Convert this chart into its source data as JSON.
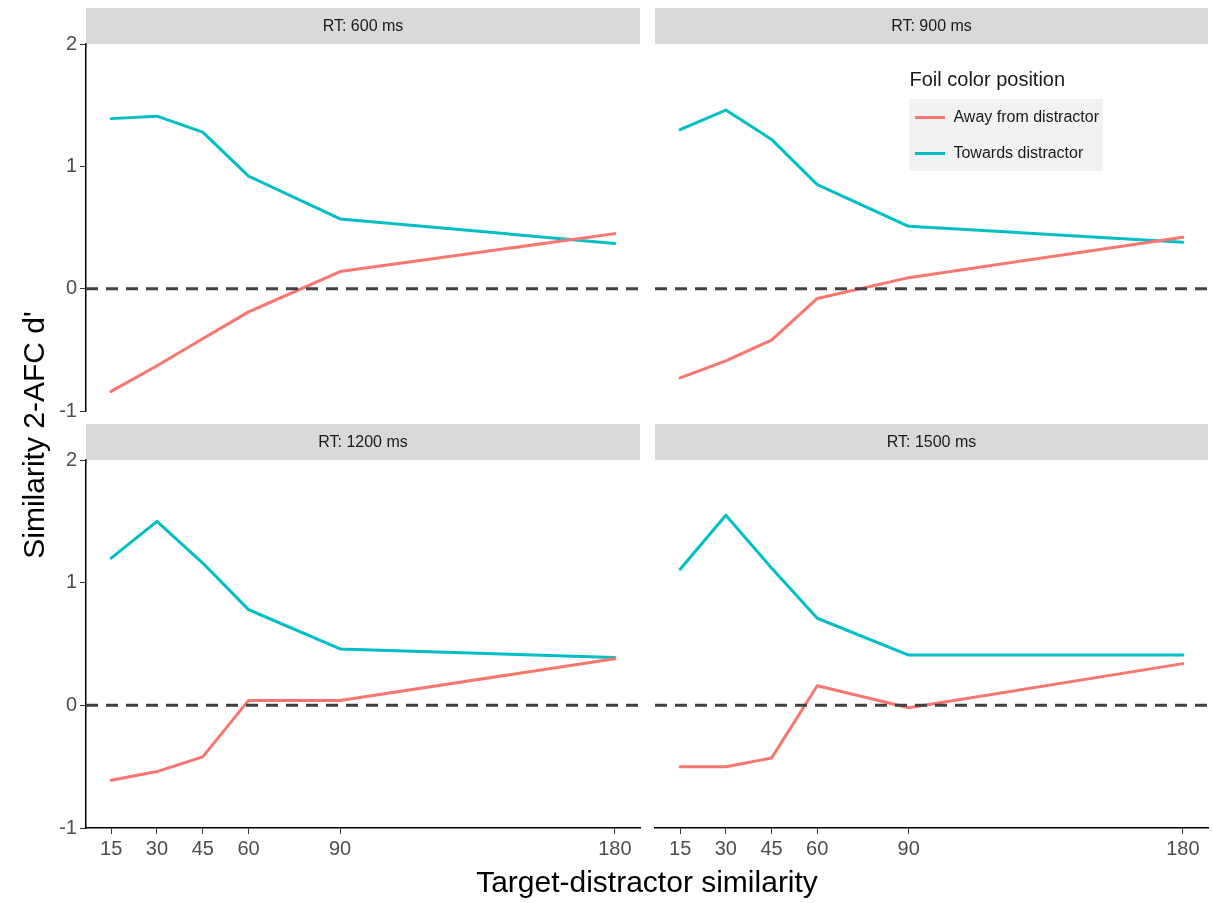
{
  "chart_data": [
    {
      "type": "line",
      "title": "RT: 600 ms",
      "ylabel": "Similarity 2-AFC d'",
      "x": [
        15,
        30,
        45,
        60,
        90,
        180
      ],
      "xlim": [
        6.75,
        188.25
      ],
      "xticks": [
        15,
        30,
        45,
        60,
        90,
        180
      ],
      "ylim": [
        -1,
        2
      ],
      "yticks": [
        -1,
        0,
        1,
        2
      ],
      "tick_labels": "y",
      "grid": false,
      "line_style": "solid",
      "marker": "none",
      "ref_lines": [
        {
          "axis": "y",
          "value": 0,
          "color": "#404040",
          "line_style": "dashed"
        }
      ],
      "series": [
        {
          "color": "#f8766d",
          "values": [
            -0.84,
            -0.63,
            -0.41,
            -0.19,
            0.14,
            0.45
          ]
        },
        {
          "color": "#00bfc4",
          "values": [
            1.39,
            1.41,
            1.28,
            0.92,
            0.57,
            0.37
          ]
        }
      ]
    },
    {
      "type": "line",
      "title": "RT: 900 ms",
      "legend_title": "Foil color position",
      "legend": "top right",
      "x": [
        15,
        30,
        45,
        60,
        90,
        180
      ],
      "xlim": [
        6.75,
        188.25
      ],
      "xticks": [
        15,
        30,
        45,
        60,
        90,
        180
      ],
      "ylim": [
        -1,
        2
      ],
      "yticks": [
        -1,
        0,
        1,
        2
      ],
      "tick_labels": false,
      "grid": false,
      "line_style": "solid",
      "marker": "none",
      "ref_lines": [
        {
          "axis": "y",
          "value": 0,
          "color": "#404040",
          "line_style": "dashed"
        }
      ],
      "series": [
        {
          "name": "Away from distractor",
          "color": "#f8766d",
          "values": [
            -0.73,
            -0.59,
            -0.42,
            -0.08,
            0.09,
            0.42
          ]
        },
        {
          "name": "Towards distractor",
          "color": "#00bfc4",
          "values": [
            1.3,
            1.46,
            1.22,
            0.85,
            0.51,
            0.38
          ]
        }
      ]
    },
    {
      "type": "line",
      "title": "RT: 1200 ms",
      "xlabel": "Target-distractor similarity",
      "x": [
        15,
        30,
        45,
        60,
        90,
        180
      ],
      "xlim": [
        6.75,
        188.25
      ],
      "xticks": [
        15,
        30,
        45,
        60,
        90,
        180
      ],
      "ylim": [
        -1,
        2
      ],
      "yticks": [
        -1,
        0,
        1,
        2
      ],
      "grid": false,
      "line_style": "solid",
      "marker": "none",
      "ref_lines": [
        {
          "axis": "y",
          "value": 0,
          "color": "#404040",
          "line_style": "dashed"
        }
      ],
      "series": [
        {
          "color": "#f8766d",
          "values": [
            -0.61,
            -0.54,
            -0.42,
            0.04,
            0.04,
            0.38
          ]
        },
        {
          "color": "#00bfc4",
          "values": [
            1.2,
            1.5,
            1.16,
            0.78,
            0.46,
            0.39
          ]
        }
      ]
    },
    {
      "type": "line",
      "title": "RT: 1500 ms",
      "x": [
        15,
        30,
        45,
        60,
        90,
        180
      ],
      "xlim": [
        6.75,
        188.25
      ],
      "xticks": [
        15,
        30,
        45,
        60,
        90,
        180
      ],
      "ylim": [
        -1,
        2
      ],
      "yticks": [
        -1,
        0,
        1,
        2
      ],
      "tick_labels": "x",
      "grid": false,
      "line_style": "solid",
      "marker": "none",
      "ref_lines": [
        {
          "axis": "y",
          "value": 0,
          "color": "#404040",
          "line_style": "dashed"
        }
      ],
      "series": [
        {
          "color": "#f8766d",
          "values": [
            -0.5,
            -0.5,
            -0.43,
            0.16,
            -0.02,
            0.34
          ]
        },
        {
          "color": "#00bfc4",
          "values": [
            1.11,
            1.55,
            1.12,
            0.71,
            0.41,
            0.41
          ]
        }
      ]
    }
  ]
}
